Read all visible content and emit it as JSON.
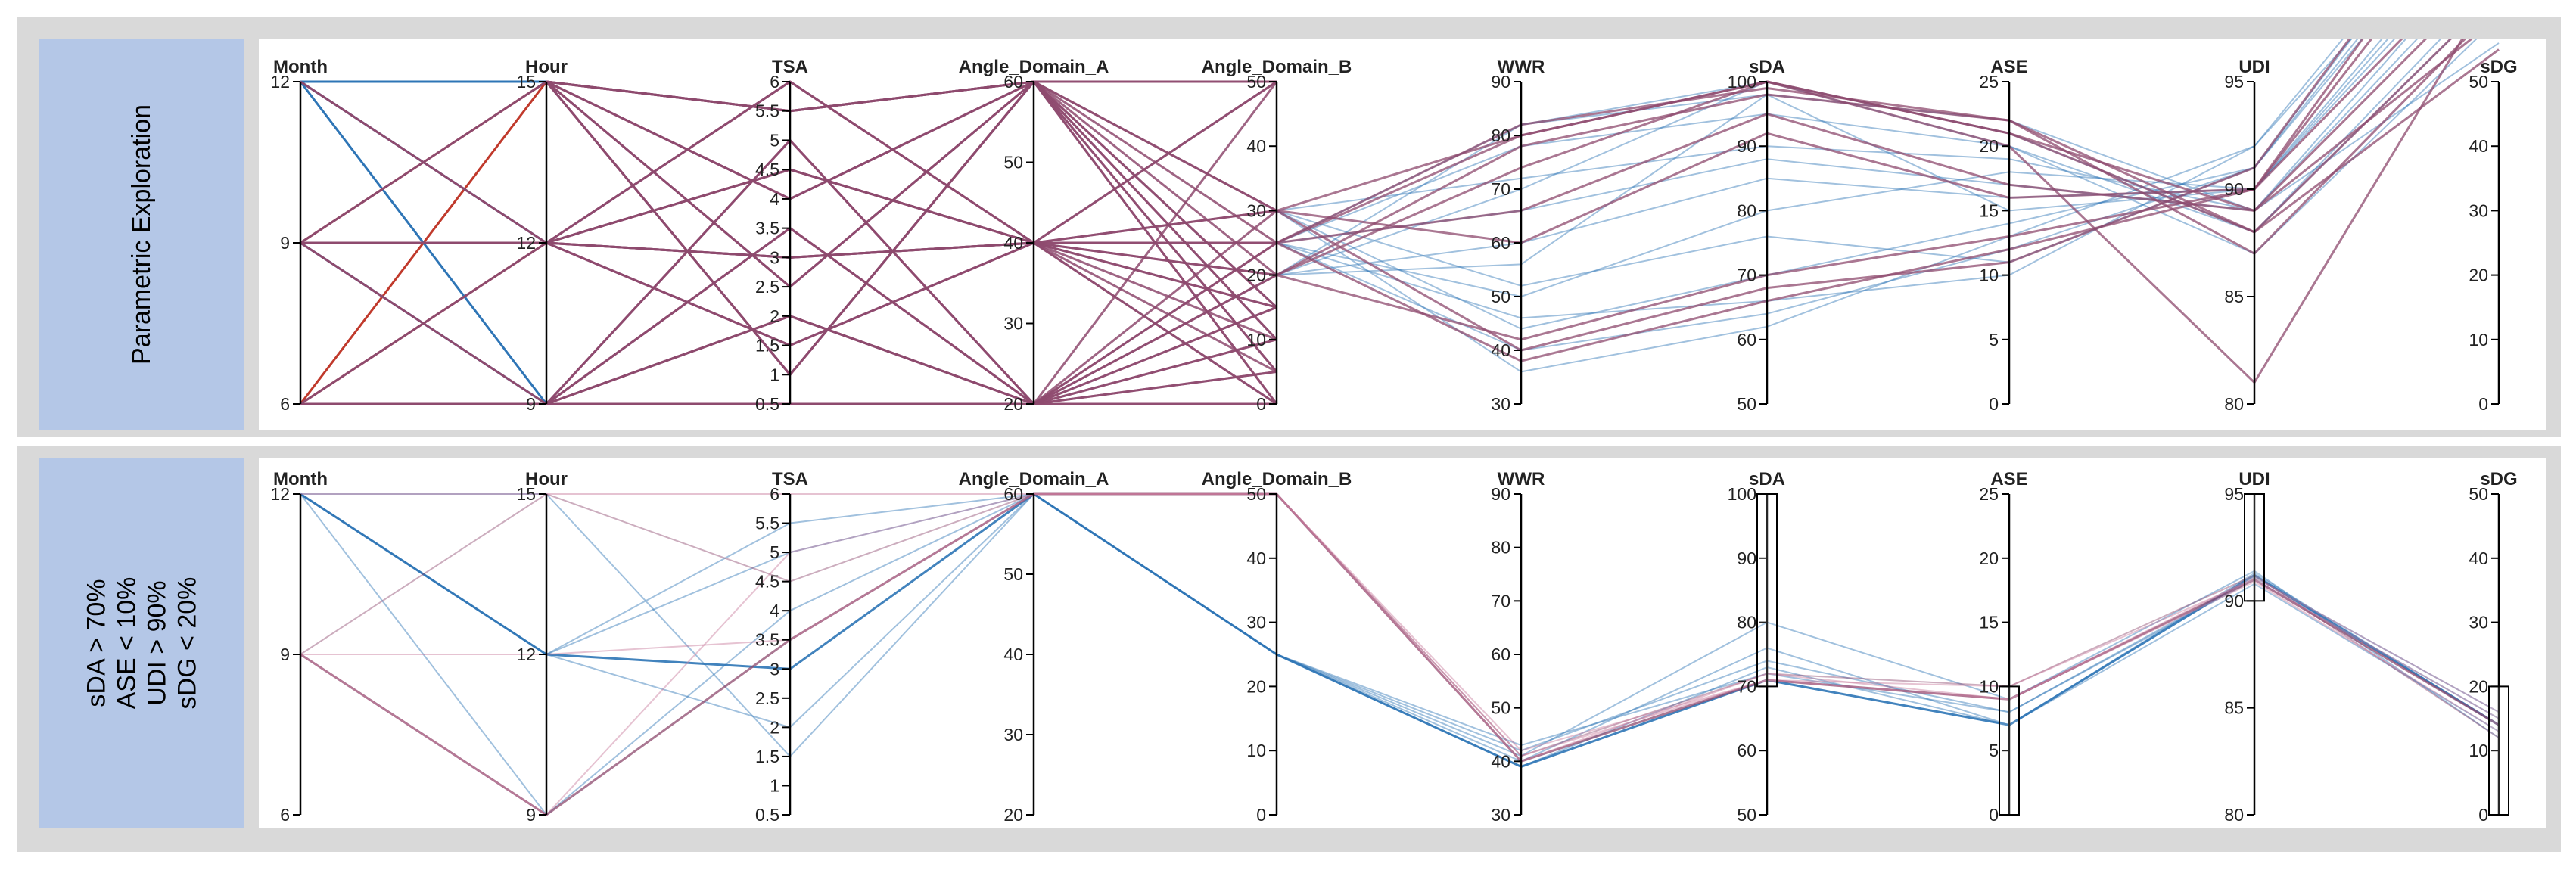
{
  "panels": [
    {
      "label_lines": [
        "Parametric Exploration"
      ],
      "chart_data": {
        "type": "parallel-coordinates",
        "title": "Parametric Exploration",
        "axes": [
          {
            "name": "Month",
            "range": [
              6,
              12
            ],
            "ticks": [
              6,
              9,
              12
            ]
          },
          {
            "name": "Hour",
            "range": [
              9,
              15
            ],
            "ticks": [
              9,
              12,
              15
            ]
          },
          {
            "name": "TSA",
            "range": [
              0.5,
              6
            ],
            "ticks": [
              0.5,
              1,
              1.5,
              2,
              2.5,
              3,
              3.5,
              4,
              4.5,
              5,
              5.5,
              6
            ]
          },
          {
            "name": "Angle_Domain_A",
            "range": [
              20,
              60
            ],
            "ticks": [
              20,
              30,
              40,
              50,
              60
            ]
          },
          {
            "name": "Angle_Domain_B",
            "range": [
              0,
              50
            ],
            "ticks": [
              0,
              10,
              20,
              30,
              40,
              50
            ]
          },
          {
            "name": "WWR",
            "range": [
              30,
              90
            ],
            "ticks": [
              30,
              40,
              50,
              60,
              70,
              80,
              90
            ]
          },
          {
            "name": "sDA",
            "range": [
              50,
              100
            ],
            "ticks": [
              50,
              60,
              70,
              80,
              90,
              100
            ]
          },
          {
            "name": "ASE",
            "range": [
              0,
              25
            ],
            "ticks": [
              0,
              5,
              10,
              15,
              20,
              25
            ]
          },
          {
            "name": "UDI",
            "range": [
              80,
              95
            ],
            "ticks": [
              80,
              85,
              90,
              95
            ]
          },
          {
            "name": "sDG",
            "range": [
              0,
              50
            ],
            "ticks": [
              0,
              10,
              20,
              30,
              40,
              50
            ]
          }
        ],
        "brushes": [],
        "series": [
          {
            "name": "red",
            "color": "#c0392b",
            "width": 3,
            "opacity": 1,
            "values": [
              [
                6,
                15
              ],
              [
                6,
                12
              ],
              [
                9,
                15
              ],
              [
                12,
                15
              ]
            ]
          },
          {
            "name": "blue-discrete",
            "color": "#2e75b6",
            "width": 3,
            "opacity": 1,
            "values": [
              [
                12,
                15
              ],
              [
                12,
                12
              ],
              [
                12,
                9
              ],
              [
                9,
                9
              ]
            ]
          },
          {
            "name": "mauve-discrete",
            "color": "#8e4a6e",
            "width": 3,
            "opacity": 1,
            "values": [
              [
                9,
                15
              ],
              [
                9,
                12
              ],
              [
                6,
                9
              ],
              [
                9,
                12
              ],
              [
                12,
                12
              ],
              [
                6,
                12
              ],
              [
                9,
                9
              ]
            ]
          },
          {
            "name": "blue-cont",
            "color": "#2e75b6",
            "width": 2,
            "opacity": 0.45,
            "values": [
              [
                30,
                0,
                36,
                62,
                13,
                92,
                82
              ],
              [
                25,
                0,
                40,
                64,
                12,
                91,
                87
              ],
              [
                30,
                50,
                44,
                70,
                14,
                91,
                82
              ],
              [
                25,
                0,
                50,
                80,
                18,
                90,
                78
              ],
              [
                20,
                50,
                60,
                85,
                16,
                90,
                76
              ],
              [
                25,
                0,
                66,
                88,
                17,
                89,
                73
              ],
              [
                30,
                50,
                72,
                90,
                19,
                89,
                70
              ],
              [
                25,
                50,
                78,
                95,
                20,
                88,
                66
              ],
              [
                20,
                0,
                82,
                100,
                21,
                88,
                64
              ],
              [
                25,
                0,
                82,
                98,
                22,
                89,
                56
              ],
              [
                20,
                50,
                70,
                100,
                20,
                87,
                60
              ],
              [
                30,
                0,
                52,
                76,
                11,
                91,
                84
              ],
              [
                25,
                50,
                46,
                66,
                10,
                92,
                86
              ],
              [
                20,
                0,
                56,
                98,
                15,
                90,
                74
              ]
            ]
          },
          {
            "name": "mauve-cont",
            "color": "#8e4a6e",
            "width": 3,
            "opacity": 0.75,
            "values": [
              [
                30,
                0,
                40,
                68,
                11,
                91,
                88
              ],
              [
                25,
                50,
                38,
                66,
                12,
                90,
                86
              ],
              [
                20,
                0,
                42,
                70,
                13,
                90,
                82
              ],
              [
                30,
                50,
                80,
                100,
                21,
                89,
                60
              ],
              [
                25,
                0,
                82,
                99,
                22,
                88,
                55
              ],
              [
                20,
                50,
                78,
                98,
                22,
                87,
                62
              ],
              [
                25,
                0,
                66,
                95,
                17,
                89,
                68
              ],
              [
                30,
                50,
                60,
                92,
                16,
                90,
                72
              ],
              [
                20,
                0,
                74,
                100,
                20,
                81,
                66
              ],
              [
                25,
                50,
                80,
                100,
                21,
                88,
                64
              ]
            ]
          }
        ],
        "discrete_lines": {
          "count": 42,
          "color": "#8e4a6e",
          "hour_values": [
            9,
            12,
            15
          ],
          "tsa_values": [
            0.5,
            1,
            1.5,
            2,
            2.5,
            3,
            3.5,
            4,
            4.5,
            5,
            5.5,
            6
          ],
          "angle_a_values": [
            20,
            40,
            60
          ],
          "angle_b_values": [
            0,
            5,
            10,
            15,
            20,
            25,
            30,
            50
          ]
        }
      }
    },
    {
      "label_lines": [
        "sDA > 70%",
        "ASE < 10%",
        "UDI > 90%",
        "sDG < 20%"
      ],
      "chart_data": {
        "type": "parallel-coordinates",
        "title": "sDA > 70%, ASE < 10%, UDI > 90%, sDG < 20%",
        "axes": [
          {
            "name": "Month",
            "range": [
              6,
              12
            ],
            "ticks": [
              6,
              9,
              12
            ]
          },
          {
            "name": "Hour",
            "range": [
              9,
              15
            ],
            "ticks": [
              9,
              12,
              15
            ]
          },
          {
            "name": "TSA",
            "range": [
              0.5,
              6
            ],
            "ticks": [
              0.5,
              1,
              1.5,
              2,
              2.5,
              3,
              3.5,
              4,
              4.5,
              5,
              5.5,
              6
            ]
          },
          {
            "name": "Angle_Domain_A",
            "range": [
              20,
              60
            ],
            "ticks": [
              20,
              30,
              40,
              50,
              60
            ]
          },
          {
            "name": "Angle_Domain_B",
            "range": [
              0,
              50
            ],
            "ticks": [
              0,
              10,
              20,
              30,
              40,
              50
            ]
          },
          {
            "name": "WWR",
            "range": [
              30,
              90
            ],
            "ticks": [
              30,
              40,
              50,
              60,
              70,
              80,
              90
            ]
          },
          {
            "name": "sDA",
            "range": [
              50,
              100
            ],
            "ticks": [
              50,
              60,
              70,
              80,
              90,
              100
            ]
          },
          {
            "name": "ASE",
            "range": [
              0,
              25
            ],
            "ticks": [
              0,
              5,
              10,
              15,
              20,
              25
            ]
          },
          {
            "name": "UDI",
            "range": [
              80,
              95
            ],
            "ticks": [
              80,
              85,
              90,
              95
            ]
          },
          {
            "name": "sDG",
            "range": [
              0,
              50
            ],
            "ticks": [
              0,
              10,
              20,
              30,
              40,
              50
            ]
          }
        ],
        "brushes": [
          {
            "axis": "sDA",
            "range": [
              70,
              100
            ]
          },
          {
            "axis": "ASE",
            "range": [
              0,
              10
            ]
          },
          {
            "axis": "UDI",
            "range": [
              90,
              95
            ]
          },
          {
            "axis": "sDG",
            "range": [
              0,
              20
            ]
          }
        ],
        "series": [
          {
            "name": "s1",
            "color": "#2e75b6",
            "width": 3,
            "opacity": 0.9,
            "values": [
              [
                12,
                12,
                3,
                60,
                25,
                39,
                71,
                7,
                91.2,
                14
              ]
            ]
          },
          {
            "name": "s2",
            "color": "#2e75b6",
            "width": 2,
            "opacity": 0.45,
            "values": [
              [
                12,
                15,
                1.5,
                60,
                25,
                42,
                74,
                8,
                91,
                15
              ]
            ]
          },
          {
            "name": "s3",
            "color": "#2e75b6",
            "width": 2,
            "opacity": 0.45,
            "values": [
              [
                12,
                12,
                5.5,
                60,
                25,
                41,
                80,
                9,
                91.4,
                12
              ]
            ]
          },
          {
            "name": "s4",
            "color": "#2e75b6",
            "width": 2,
            "opacity": 0.45,
            "values": [
              [
                12,
                9,
                4,
                60,
                25,
                40,
                76,
                7,
                90.8,
                13
              ]
            ]
          },
          {
            "name": "s5",
            "color": "#2e75b6",
            "width": 2,
            "opacity": 0.45,
            "values": [
              [
                12,
                12,
                2,
                60,
                25,
                43,
                72,
                8,
                91.1,
                16
              ]
            ]
          },
          {
            "name": "s6",
            "color": "#2e75b6",
            "width": 2,
            "opacity": 0.45,
            "values": [
              [
                12,
                12,
                5,
                60,
                25,
                39,
                73,
                7,
                91.3,
                14
              ]
            ]
          },
          {
            "name": "s7",
            "color": "#8e4a6e",
            "width": 3,
            "opacity": 0.75,
            "values": [
              [
                9,
                9,
                3.5,
                60,
                50,
                40,
                71,
                9,
                91,
                14
              ]
            ]
          },
          {
            "name": "s8",
            "color": "#8e4a6e",
            "width": 2,
            "opacity": 0.45,
            "values": [
              [
                9,
                15,
                4.5,
                60,
                50,
                41,
                72,
                10,
                91.2,
                12
              ]
            ]
          },
          {
            "name": "s9",
            "color": "#c87b9b",
            "width": 2,
            "opacity": 0.45,
            "values": [
              [
                9,
                12,
                3.5,
                60,
                50,
                42,
                71,
                9,
                90.9,
                13
              ]
            ]
          },
          {
            "name": "s10",
            "color": "#c87b9b",
            "width": 2,
            "opacity": 0.45,
            "values": [
              [
                12,
                15,
                6,
                60,
                50,
                40,
                72,
                9,
                91.1,
                16
              ]
            ]
          },
          {
            "name": "s11",
            "color": "#c87b9b",
            "width": 2,
            "opacity": 0.45,
            "values": [
              [
                9,
                9,
                5,
                60,
                50,
                41,
                71,
                10,
                91,
                15
              ]
            ]
          }
        ]
      }
    }
  ]
}
